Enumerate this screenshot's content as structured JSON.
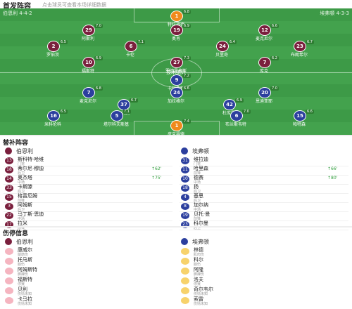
{
  "header": {
    "title": "首发阵容",
    "subtitle": "点击球员可查看本场详细数据"
  },
  "pitch": {
    "home_label": "伯恩利 4-4-2",
    "away_label": "埃弗顿 4-3-3",
    "center": "技术统计",
    "home_players": [
      {
        "number": "1",
        "name": "特拉福德",
        "rating": "6.8"
      },
      {
        "number": "29",
        "name": "阿斯利",
        "rating": "7.0"
      },
      {
        "number": "19",
        "name": "奥肖",
        "rating": "6.9"
      },
      {
        "number": "12",
        "name": "麦克尼尔",
        "rating": "6.6"
      },
      {
        "number": "2",
        "name": "罗伯茨",
        "rating": "6.5"
      },
      {
        "number": "6",
        "name": "卡伦",
        "rating": "7.1"
      },
      {
        "number": "24",
        "name": "贝里奇",
        "rating": "6.4"
      },
      {
        "number": "23",
        "name": "布朗希尔",
        "rating": "6.7"
      },
      {
        "number": "10",
        "name": "福斯特",
        "rating": "6.9"
      },
      {
        "number": "27",
        "name": "罗德里格斯",
        "rating": "7.3"
      },
      {
        "number": "7",
        "name": "库克",
        "rating": "6.2"
      }
    ],
    "away_players": [
      {
        "number": "9",
        "name": "卡尔弗特",
        "rating": "7.2"
      },
      {
        "number": "7",
        "name": "麦克尼尔",
        "rating": "6.8"
      },
      {
        "number": "24",
        "name": "加拉格尔",
        "rating": "6.6"
      },
      {
        "number": "20",
        "name": "恩迪亚耶",
        "rating": "7.0"
      },
      {
        "number": "37",
        "name": "奥纳纳",
        "rating": "6.7"
      },
      {
        "number": "42",
        "name": "杜库雷",
        "rating": "6.9"
      },
      {
        "number": "16",
        "name": "米科伦科",
        "rating": "6.5"
      },
      {
        "number": "5",
        "name": "塔尔科夫斯基",
        "rating": "7.1"
      },
      {
        "number": "6",
        "name": "布兰斯韦特",
        "rating": "7.0"
      },
      {
        "number": "15",
        "name": "帕特森",
        "rating": "6.6"
      },
      {
        "number": "1",
        "name": "皮克福德",
        "rating": "7.4"
      }
    ]
  },
  "subs": {
    "title": "替补阵容",
    "home": {
      "name": "伯恩利",
      "players": [
        {
          "number": "13",
          "name": "斯科特·哈维",
          "position": "门将"
        },
        {
          "number": "18",
          "name": "蒂尔尼·穆迪",
          "position": "后卫",
          "sub": "↑62'"
        },
        {
          "number": "14",
          "name": "奥杰塔",
          "position": "中场",
          "sub": "↑75'"
        },
        {
          "number": "33",
          "name": "卡斯滕",
          "position": "后卫"
        },
        {
          "number": "15",
          "name": "格雷厄姆",
          "position": "前锋"
        },
        {
          "number": "3",
          "name": "阿姆斯",
          "position": "后卫"
        },
        {
          "number": "22",
          "name": "马丁斯·恩迪",
          "position": "中场"
        },
        {
          "number": "17",
          "name": "拉米",
          "position": "前锋"
        }
      ]
    },
    "away": {
      "name": "埃弗顿",
      "players": [
        {
          "number": "31",
          "name": "维拉迪",
          "position": "门将"
        },
        {
          "number": "11",
          "name": "哈里森",
          "position": "前锋",
          "sub": "↑66'"
        },
        {
          "number": "10",
          "name": "德赛",
          "position": "中场",
          "sub": "↑80'"
        },
        {
          "number": "18",
          "name": "扬",
          "position": "后卫"
        },
        {
          "number": "4",
          "name": "基恩",
          "position": "后卫"
        },
        {
          "number": "8",
          "name": "加尔纳",
          "position": "中场"
        },
        {
          "number": "19",
          "name": "贝托·曼",
          "position": "前锋"
        },
        {
          "number": "23",
          "name": "科尔曼",
          "position": "后卫"
        }
      ]
    }
  },
  "injuries": {
    "title": "伤停信息",
    "home": {
      "name": "伯恩利",
      "players": [
        {
          "name": "康威尔",
          "reason": "腿筋伤"
        },
        {
          "name": "托马斯",
          "reason": "膝伤"
        },
        {
          "name": "阿姆斯特",
          "reason": "脚踝伤"
        },
        {
          "name": "福斯特",
          "reason": "停赛"
        },
        {
          "name": "贝利",
          "reason": "伤情未知"
        },
        {
          "name": "卡马拉",
          "reason": "伤情未知"
        }
      ]
    },
    "away": {
      "name": "埃弗顿",
      "players": [
        {
          "name": "林德",
          "reason": "肌肉伤"
        },
        {
          "name": "科尔",
          "reason": "膝伤"
        },
        {
          "name": "阿隆",
          "reason": "脚踝伤"
        },
        {
          "name": "洛夫",
          "reason": "停赛"
        },
        {
          "name": "奇尔韦尔",
          "reason": "伤情未知"
        },
        {
          "name": "索雷",
          "reason": "伤情未知"
        }
      ]
    }
  }
}
